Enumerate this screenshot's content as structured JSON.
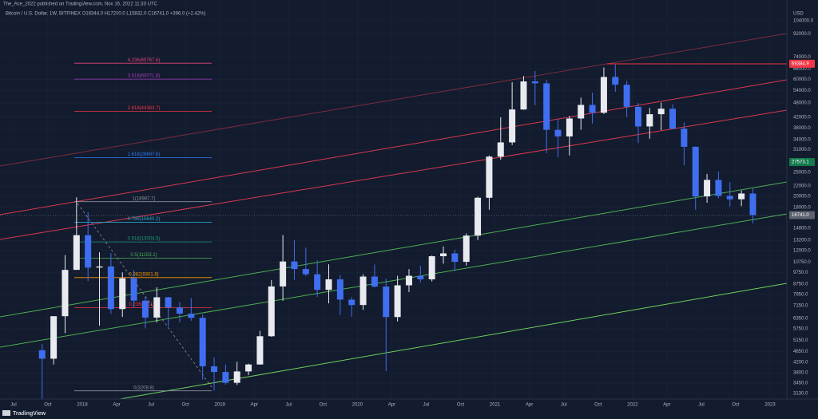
{
  "header": {
    "publisher": "The_Ace_2022 published on TradingView.com, Nov 16, 2022 11:33 UTC",
    "symbol_info": "Bitcoin / U.S. Dollar, 1W, BITFINEX  O16344.0 H17200.0 L15832.0 C16741.0 +396.0 (+2.42%)"
  },
  "chart_data": {
    "type": "candlestick",
    "log_scale": true,
    "grid": true,
    "y_axis_label": "USD",
    "up_color": "#e8eaf0",
    "down_color": "#3f6ff0",
    "x": [
      "2017-09",
      "2017-10",
      "2017-11",
      "2017-12",
      "2018-01",
      "2018-02",
      "2018-03",
      "2018-04",
      "2018-05",
      "2018-06",
      "2018-07",
      "2018-08",
      "2018-09",
      "2018-10",
      "2018-11",
      "2018-12",
      "2019-01",
      "2019-02",
      "2019-03",
      "2019-04",
      "2019-05",
      "2019-06",
      "2019-07",
      "2019-08",
      "2019-09",
      "2019-10",
      "2019-11",
      "2019-12",
      "2020-01",
      "2020-02",
      "2020-03",
      "2020-04",
      "2020-05",
      "2020-06",
      "2020-07",
      "2020-08",
      "2020-09",
      "2020-10",
      "2020-11",
      "2020-12",
      "2021-01",
      "2021-02",
      "2021-03",
      "2021-04",
      "2021-05",
      "2021-06",
      "2021-07",
      "2021-08",
      "2021-09",
      "2021-10",
      "2021-11",
      "2021-12",
      "2022-01",
      "2022-02",
      "2022-03",
      "2022-04",
      "2022-05",
      "2022-06",
      "2022-07",
      "2022-08",
      "2022-09",
      "2022-10",
      "2022-11"
    ],
    "open": [
      4700,
      4340,
      6470,
      10000,
      13860,
      10220,
      10330,
      6920,
      9240,
      7490,
      6390,
      7730,
      7020,
      6630,
      6370,
      4040,
      3830,
      3460,
      3850,
      4110,
      5360,
      8560,
      10820,
      10080,
      9600,
      8290,
      9150,
      7560,
      7190,
      9390,
      8550,
      6420,
      8650,
      9460,
      9150,
      11370,
      11680,
      10790,
      13800,
      19700,
      29000,
      33140,
      45170,
      58800,
      57750,
      37300,
      35050,
      41500,
      47150,
      43800,
      61300,
      57000,
      46300,
      38500,
      43200,
      45500,
      37700,
      31800,
      19950,
      23300,
      20050,
      19420,
      20500
    ],
    "high": [
      4980,
      6470,
      11500,
      19800,
      17200,
      11800,
      11700,
      9770,
      9990,
      7760,
      8490,
      7760,
      7400,
      7670,
      6580,
      4400,
      4110,
      4210,
      4140,
      5640,
      9080,
      13880,
      13200,
      12330,
      10950,
      10540,
      9510,
      7750,
      9590,
      10520,
      9190,
      9460,
      10070,
      10400,
      11450,
      12470,
      12090,
      14090,
      19900,
      29300,
      41970,
      58350,
      61800,
      64900,
      59600,
      41300,
      42500,
      50500,
      52900,
      67000,
      69000,
      59100,
      48000,
      45800,
      48200,
      47450,
      40000,
      31900,
      24650,
      25200,
      22800,
      21090,
      21470
    ],
    "low": [
      2980,
      4110,
      5520,
      10000,
      9000,
      5920,
      6600,
      6430,
      7050,
      5770,
      6100,
      5880,
      6100,
      6200,
      3560,
      3210,
      3400,
      3390,
      3720,
      4100,
      5330,
      7480,
      9100,
      9420,
      7750,
      7300,
      6550,
      6440,
      6870,
      8470,
      3860,
      6160,
      8120,
      8900,
      8970,
      10600,
      9880,
      10420,
      13240,
      17600,
      28150,
      32300,
      45000,
      47000,
      30000,
      28800,
      29300,
      37300,
      39600,
      43300,
      53300,
      42000,
      32950,
      34300,
      37200,
      37600,
      26700,
      17600,
      18800,
      19600,
      18150,
      18200,
      15480
    ],
    "close": [
      4340,
      6470,
      10000,
      13860,
      10220,
      10330,
      6920,
      9240,
      7490,
      6390,
      7730,
      7020,
      6630,
      6370,
      4040,
      3830,
      3460,
      3850,
      4110,
      5360,
      8560,
      10820,
      10080,
      9600,
      8290,
      9150,
      7560,
      7190,
      9390,
      8550,
      6420,
      8650,
      9460,
      9150,
      11370,
      11680,
      10790,
      13800,
      19700,
      29000,
      33140,
      45170,
      58800,
      57750,
      37300,
      35050,
      41500,
      47150,
      43800,
      61300,
      57000,
      46300,
      38500,
      43200,
      45500,
      37700,
      31800,
      19950,
      23300,
      20050,
      19420,
      20500,
      16741
    ],
    "ylim": [
      2970,
      115500
    ],
    "yticks": [
      {
        "value": 104000,
        "label": "104000.0"
      },
      {
        "value": 92000,
        "label": "92000.0"
      },
      {
        "value": 74000,
        "label": "74000.0"
      },
      {
        "value": 66000,
        "label": "66000.0"
      },
      {
        "value": 60000,
        "label": "60000.0"
      },
      {
        "value": 54000,
        "label": "54000.0"
      },
      {
        "value": 48000,
        "label": "48000.0"
      },
      {
        "value": 42000,
        "label": "42000.0"
      },
      {
        "value": 38000,
        "label": "38000.0"
      },
      {
        "value": 34000,
        "label": "34000.0"
      },
      {
        "value": 31000,
        "label": "31000.0"
      },
      {
        "value": 25000,
        "label": "25000.0"
      },
      {
        "value": 22000,
        "label": "22000.0"
      },
      {
        "value": 20000,
        "label": "20000.0"
      },
      {
        "value": 18000,
        "label": "18000.0"
      },
      {
        "value": 14800,
        "label": "14800.0"
      },
      {
        "value": 13200,
        "label": "13200.0"
      },
      {
        "value": 12000,
        "label": "12000.0"
      },
      {
        "value": 10750,
        "label": "10750.0"
      },
      {
        "value": 9750,
        "label": "9750.0"
      },
      {
        "value": 8750,
        "label": "8750.0"
      },
      {
        "value": 7950,
        "label": "7950.0"
      },
      {
        "value": 7150,
        "label": "7150.0"
      },
      {
        "value": 6350,
        "label": "6350.0"
      },
      {
        "value": 5750,
        "label": "5750.0"
      },
      {
        "value": 5150,
        "label": "5150.0"
      },
      {
        "value": 4650,
        "label": "4650.0"
      },
      {
        "value": 4200,
        "label": "4200.0"
      },
      {
        "value": 3800,
        "label": "3800.0"
      },
      {
        "value": 3450,
        "label": "3450.0"
      },
      {
        "value": 3130,
        "label": "3130.0"
      }
    ],
    "xticks": [
      {
        "value": "2017-07",
        "label": "Jul"
      },
      {
        "value": "2017-10",
        "label": "Oct"
      },
      {
        "value": "2018-01",
        "label": "2018"
      },
      {
        "value": "2018-04",
        "label": "Apr"
      },
      {
        "value": "2018-07",
        "label": "Jul"
      },
      {
        "value": "2018-10",
        "label": "Oct"
      },
      {
        "value": "2019-01",
        "label": "2019"
      },
      {
        "value": "2019-04",
        "label": "Apr"
      },
      {
        "value": "2019-07",
        "label": "Jul"
      },
      {
        "value": "2019-10",
        "label": "Oct"
      },
      {
        "value": "2020-01",
        "label": "2020"
      },
      {
        "value": "2020-04",
        "label": "Apr"
      },
      {
        "value": "2020-07",
        "label": "Jul"
      },
      {
        "value": "2020-10",
        "label": "Oct"
      },
      {
        "value": "2021-01",
        "label": "2021"
      },
      {
        "value": "2021-04",
        "label": "Apr"
      },
      {
        "value": "2021-07",
        "label": "Jul"
      },
      {
        "value": "2021-10",
        "label": "Oct"
      },
      {
        "value": "2022-01",
        "label": "2022"
      },
      {
        "value": "2022-04",
        "label": "Apr"
      },
      {
        "value": "2022-07",
        "label": "Jul"
      },
      {
        "value": "2022-10",
        "label": "Oct"
      },
      {
        "value": "2023-01",
        "label": "2023"
      }
    ],
    "fib_levels": [
      {
        "value": 69767.6,
        "label": "4.236(69767.6)",
        "color": "#e0457b"
      },
      {
        "value": 60071.8,
        "label": "3.618(60071.8)",
        "color": "#a13ec0"
      },
      {
        "value": 44383.7,
        "label": "2.618(44383.7)",
        "color": "#f23645"
      },
      {
        "value": 28697.6,
        "label": "1.618(28697.6)",
        "color": "#2f7bf5"
      },
      {
        "value": 18987.7,
        "label": "1(18987.7)",
        "color": "#8a8f9c"
      },
      {
        "value": 15640.2,
        "label": "0.786(15640.2)",
        "color": "#26a6c9"
      },
      {
        "value": 13004.5,
        "label": "0.618(13004.5)",
        "color": "#1f9a7a"
      },
      {
        "value": 11153.1,
        "label": "0.5(11153.1)",
        "color": "#4caf50"
      },
      {
        "value": 9301.8,
        "label": "0.382(9301.8)",
        "color": "#ff9800"
      },
      {
        "value": 7011.2,
        "label": "0.236(7011.2)",
        "color": "#f23645"
      },
      {
        "value": 3208.8,
        "label": "0(3208.8)",
        "color": "#8a8f9c"
      }
    ],
    "price_labels": [
      {
        "value": 69384.9,
        "label": "69384.9",
        "color": "#f23645"
      },
      {
        "value": 27573.1,
        "label": "27573.1",
        "color": "#137a4c"
      },
      {
        "value": 16741.0,
        "label": "16741.0",
        "color": "#5d6270"
      }
    ]
  },
  "footer": {
    "brand": "TradingView"
  }
}
